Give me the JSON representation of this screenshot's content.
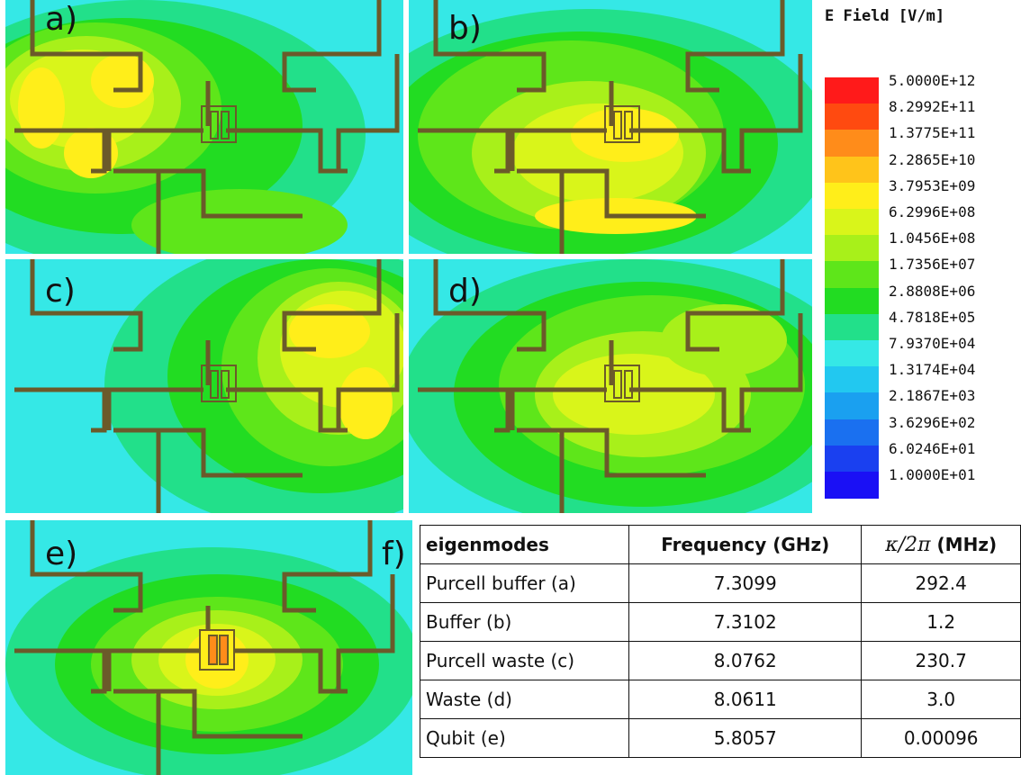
{
  "panels": [
    {
      "id": "a",
      "label": "a)"
    },
    {
      "id": "b",
      "label": "b)"
    },
    {
      "id": "c",
      "label": "c)"
    },
    {
      "id": "d",
      "label": "d)"
    },
    {
      "id": "e",
      "label": "e)"
    }
  ],
  "table_label": "f)",
  "legend": {
    "title": "E Field [V/m]",
    "entries": [
      {
        "value": "5.0000E+12",
        "color": "#ff1a1a"
      },
      {
        "value": "8.2992E+11",
        "color": "#ff4a10"
      },
      {
        "value": "1.3775E+11",
        "color": "#ff8c1a"
      },
      {
        "value": "2.2865E+10",
        "color": "#ffc41a"
      },
      {
        "value": "3.7953E+09",
        "color": "#ffee1a"
      },
      {
        "value": "6.2996E+08",
        "color": "#d9f51a"
      },
      {
        "value": "1.0456E+08",
        "color": "#a8f01a"
      },
      {
        "value": "1.7356E+07",
        "color": "#5ee61a"
      },
      {
        "value": "2.8808E+06",
        "color": "#22dc22"
      },
      {
        "value": "4.7818E+05",
        "color": "#22e08a"
      },
      {
        "value": "7.9370E+04",
        "color": "#35e8e6"
      },
      {
        "value": "1.3174E+04",
        "color": "#22c8f0"
      },
      {
        "value": "2.1867E+03",
        "color": "#1aa0f0"
      },
      {
        "value": "3.6296E+02",
        "color": "#1a70f0"
      },
      {
        "value": "6.0246E+01",
        "color": "#1a40f0"
      },
      {
        "value": "1.0000E+01",
        "color": "#1a10f5"
      }
    ]
  },
  "table": {
    "headers": [
      "eigenmodes",
      "Frequency (GHz)",
      "κ/2π",
      "(MHz)"
    ],
    "rows": [
      [
        "Purcell buffer (a)",
        "7.3099",
        "292.4"
      ],
      [
        "Buffer (b)",
        "7.3102",
        "1.2"
      ],
      [
        "Purcell waste (c)",
        "8.0762",
        "230.7"
      ],
      [
        "Waste (d)",
        "8.0611",
        "3.0"
      ],
      [
        "Qubit (e)",
        "5.8057",
        "0.00096"
      ]
    ]
  }
}
